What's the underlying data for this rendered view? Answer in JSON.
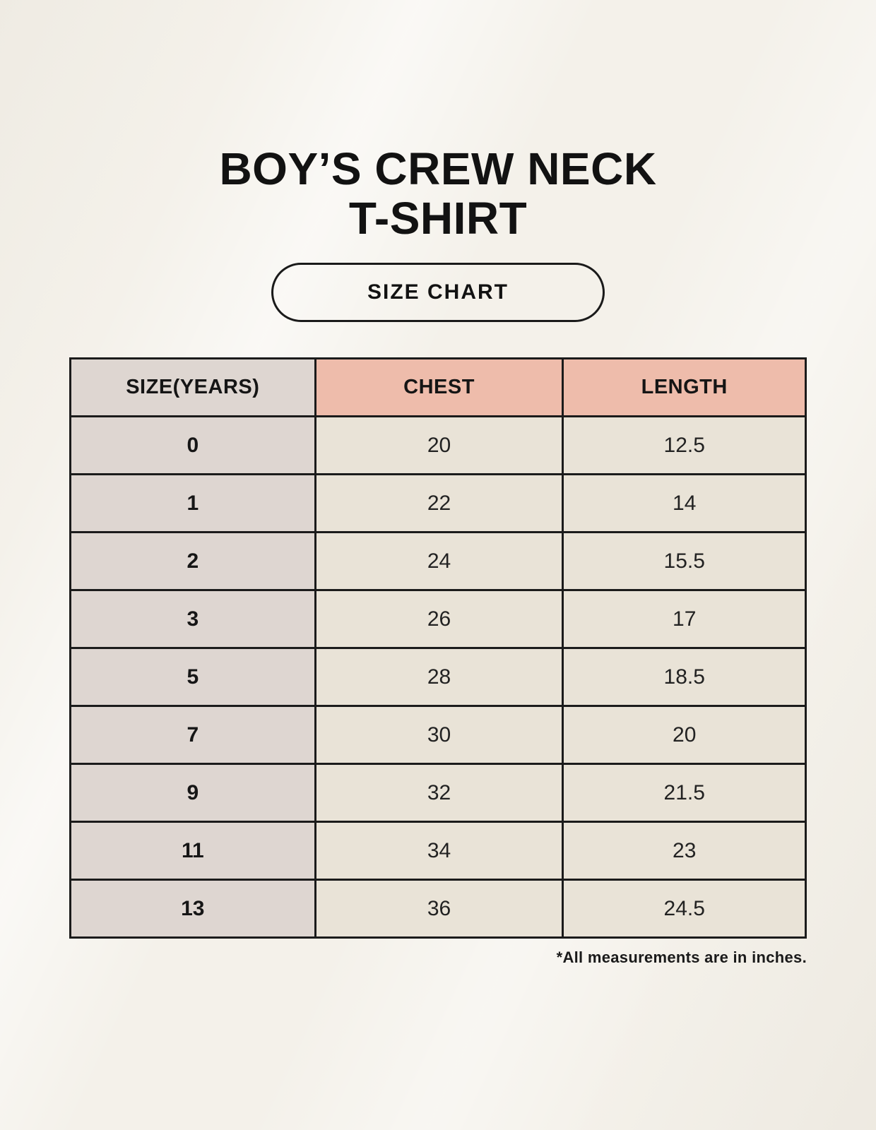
{
  "page": {
    "title_line1": "BOY’S CREW NECK",
    "title_line2": "T-SHIRT",
    "badge_label": "SIZE CHART",
    "footnote": "*All measurements are in inches."
  },
  "colors": {
    "background": "#f4f1ea",
    "header_accent": "#eebcab",
    "size_column": "#ded6d1",
    "data_cell": "#e9e3d7",
    "border": "#1b1b1b",
    "text": "#141414"
  },
  "chart_data": {
    "type": "table",
    "title": "BOY’S CREW NECK T-SHIRT — SIZE CHART",
    "units": "inches",
    "columns": [
      "SIZE(YEARS)",
      "CHEST",
      "LENGTH"
    ],
    "rows": [
      [
        "0",
        "20",
        "12.5"
      ],
      [
        "1",
        "22",
        "14"
      ],
      [
        "2",
        "24",
        "15.5"
      ],
      [
        "3",
        "26",
        "17"
      ],
      [
        "5",
        "28",
        "18.5"
      ],
      [
        "7",
        "30",
        "20"
      ],
      [
        "9",
        "32",
        "21.5"
      ],
      [
        "11",
        "34",
        "23"
      ],
      [
        "13",
        "36",
        "24.5"
      ]
    ]
  }
}
